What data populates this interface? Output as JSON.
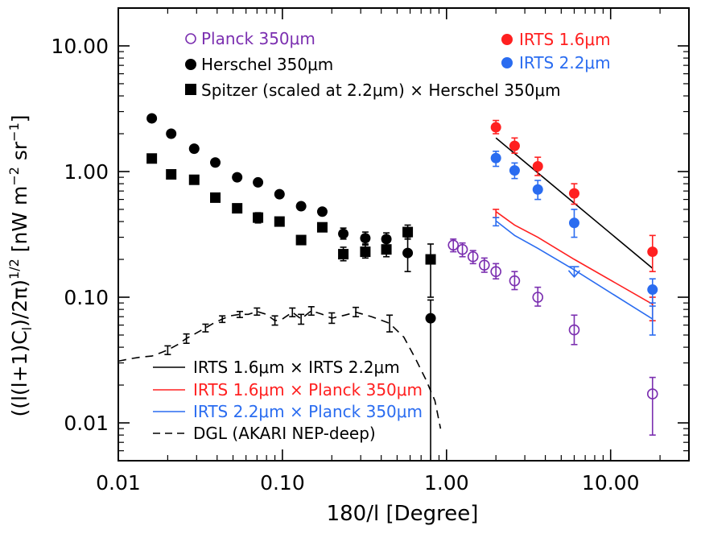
{
  "chart_data": {
    "type": "scatter",
    "xscale": "log",
    "yscale": "log",
    "xlim": [
      0.01,
      30
    ],
    "ylim": [
      0.005,
      20
    ],
    "xlabel": "180/l [Degree]",
    "ylabel": "((l(l+1)C_l)/2π)^1/2 [nW m^-2 sr^-1]",
    "ylabel_main": "((l(l+1)C",
    "ylabel_sub": "l",
    "ylabel_mid": ")/2π)",
    "ylabel_sup1": "1/2",
    "ylabel_unit": " [nW m",
    "ylabel_sup2": "−2",
    "ylabel_unit2": " sr",
    "ylabel_sup3": "−1",
    "ylabel_end": "]",
    "xticks": [
      {
        "value": 0.01,
        "label": "0.01"
      },
      {
        "value": 0.1,
        "label": "0.10"
      },
      {
        "value": 1,
        "label": "1.00"
      },
      {
        "value": 10,
        "label": "10.00"
      }
    ],
    "yticks": [
      {
        "value": 0.01,
        "label": "0.01"
      },
      {
        "value": 0.1,
        "label": "0.10"
      },
      {
        "value": 1,
        "label": "1.00"
      },
      {
        "value": 10,
        "label": "10.00"
      }
    ],
    "colors": {
      "black": "#000000",
      "red": "#ff2020",
      "blue": "#2a6cf0",
      "purple": "#7b2fb0"
    },
    "series": [
      {
        "name": "Planck 350μm",
        "label": "Planck 350",
        "unit": "μm",
        "marker": "open-circle",
        "color": "#7b2fb0",
        "points": [
          {
            "x": 1.1,
            "y": 0.26,
            "lo": 0.23,
            "hi": 0.29
          },
          {
            "x": 1.25,
            "y": 0.24,
            "lo": 0.21,
            "hi": 0.27
          },
          {
            "x": 1.45,
            "y": 0.21,
            "lo": 0.185,
            "hi": 0.235
          },
          {
            "x": 1.7,
            "y": 0.18,
            "lo": 0.158,
            "hi": 0.205
          },
          {
            "x": 2.0,
            "y": 0.16,
            "lo": 0.14,
            "hi": 0.185
          },
          {
            "x": 2.6,
            "y": 0.135,
            "lo": 0.115,
            "hi": 0.16
          },
          {
            "x": 3.6,
            "y": 0.1,
            "lo": 0.085,
            "hi": 0.12
          },
          {
            "x": 6.0,
            "y": 0.055,
            "lo": 0.042,
            "hi": 0.072
          },
          {
            "x": 18.0,
            "y": 0.017,
            "lo": 0.008,
            "hi": 0.023
          }
        ]
      },
      {
        "name": "Herschel 350μm",
        "label": "Herschel 350",
        "unit": "μm",
        "marker": "filled-circle",
        "color": "#000000",
        "points": [
          {
            "x": 0.016,
            "y": 2.65
          },
          {
            "x": 0.021,
            "y": 2.0
          },
          {
            "x": 0.029,
            "y": 1.52
          },
          {
            "x": 0.039,
            "y": 1.18
          },
          {
            "x": 0.053,
            "y": 0.9
          },
          {
            "x": 0.071,
            "y": 0.82
          },
          {
            "x": 0.096,
            "y": 0.66
          },
          {
            "x": 0.13,
            "y": 0.53
          },
          {
            "x": 0.175,
            "y": 0.48
          },
          {
            "x": 0.235,
            "y": 0.32,
            "lo": 0.29,
            "hi": 0.355
          },
          {
            "x": 0.32,
            "y": 0.295,
            "lo": 0.265,
            "hi": 0.33
          },
          {
            "x": 0.43,
            "y": 0.29,
            "lo": 0.26,
            "hi": 0.325
          },
          {
            "x": 0.58,
            "y": 0.225,
            "lo": 0.16,
            "hi": 0.3
          },
          {
            "x": 0.8,
            "y": 0.068,
            "lo": 0.003,
            "hi": 0.095
          }
        ]
      },
      {
        "name": "Spitzer (scaled at 2.2μm) × Herschel 350μm",
        "label": "Spitzer (scaled at 2.2",
        "unit": "μm",
        "label_tail": ") × Herschel 350",
        "marker": "filled-square",
        "color": "#000000",
        "points": [
          {
            "x": 0.016,
            "y": 1.27
          },
          {
            "x": 0.021,
            "y": 0.95
          },
          {
            "x": 0.029,
            "y": 0.86
          },
          {
            "x": 0.039,
            "y": 0.62
          },
          {
            "x": 0.053,
            "y": 0.51
          },
          {
            "x": 0.071,
            "y": 0.43,
            "lo": 0.39,
            "hi": 0.47
          },
          {
            "x": 0.096,
            "y": 0.4
          },
          {
            "x": 0.13,
            "y": 0.285
          },
          {
            "x": 0.175,
            "y": 0.36
          },
          {
            "x": 0.235,
            "y": 0.22,
            "lo": 0.195,
            "hi": 0.25
          },
          {
            "x": 0.32,
            "y": 0.23,
            "lo": 0.205,
            "hi": 0.26
          },
          {
            "x": 0.43,
            "y": 0.24,
            "lo": 0.21,
            "hi": 0.275
          },
          {
            "x": 0.58,
            "y": 0.33,
            "lo": 0.29,
            "hi": 0.375
          },
          {
            "x": 0.8,
            "y": 0.2,
            "lo": 0.1,
            "hi": 0.265
          }
        ]
      },
      {
        "name": "IRTS 1.6μm",
        "label": "IRTS 1.6",
        "unit": "μm",
        "marker": "filled-circle",
        "color": "#ff2020",
        "points": [
          {
            "x": 2.0,
            "y": 2.25,
            "lo": 2.0,
            "hi": 2.55
          },
          {
            "x": 2.6,
            "y": 1.6,
            "lo": 1.4,
            "hi": 1.85
          },
          {
            "x": 3.6,
            "y": 1.1,
            "lo": 0.93,
            "hi": 1.3
          },
          {
            "x": 6.0,
            "y": 0.67,
            "lo": 0.55,
            "hi": 0.8
          },
          {
            "x": 18.0,
            "y": 0.23,
            "lo": 0.16,
            "hi": 0.31
          }
        ]
      },
      {
        "name": "IRTS 2.2μm",
        "label": "IRTS 2.2",
        "unit": "μm",
        "marker": "filled-circle",
        "color": "#2a6cf0",
        "points": [
          {
            "x": 2.0,
            "y": 1.28,
            "lo": 1.1,
            "hi": 1.45
          },
          {
            "x": 2.6,
            "y": 1.02,
            "lo": 0.88,
            "hi": 1.17
          },
          {
            "x": 3.6,
            "y": 0.72,
            "lo": 0.6,
            "hi": 0.85
          },
          {
            "x": 6.0,
            "y": 0.39,
            "lo": 0.3,
            "hi": 0.5
          },
          {
            "x": 18.0,
            "y": 0.115,
            "lo": 0.09,
            "hi": 0.14
          }
        ],
        "upper_limit": {
          "x": 6.0,
          "y": 0.175,
          "lo": 0.145
        }
      }
    ],
    "lines": [
      {
        "name": "IRTS 1.6μm × IRTS 2.2μm",
        "label": "IRTS 1.6",
        "unit": "μm",
        "label_mid": " × IRTS 2.2",
        "unit2": "μm",
        "label_end": "",
        "color": "#000000",
        "style": "solid",
        "points": [
          {
            "x": 2.0,
            "y": 1.85
          },
          {
            "x": 18.0,
            "y": 0.17
          }
        ]
      },
      {
        "name": "IRTS 1.6μm × Planck 350μm",
        "label": "IRTS 1.6",
        "unit": "μm",
        "label_mid": " × Planck 350",
        "unit2": "μm",
        "label_end": "",
        "color": "#ff2020",
        "style": "solid",
        "points": [
          {
            "x": 2.0,
            "y": 0.48,
            "lo": 0.43,
            "hi": 0.5
          },
          {
            "x": 2.6,
            "y": 0.375
          },
          {
            "x": 3.6,
            "y": 0.3
          },
          {
            "x": 6.0,
            "y": 0.2
          },
          {
            "x": 18.0,
            "y": 0.088,
            "lo": 0.065,
            "hi": 0.1
          }
        ]
      },
      {
        "name": "IRTS 2.2μm × Planck 350μm",
        "label": "IRTS 2.2",
        "unit": "μm",
        "label_mid": " × Planck 350",
        "unit2": "μm",
        "label_end": "",
        "color": "#2a6cf0",
        "style": "solid",
        "points": [
          {
            "x": 2.0,
            "y": 0.405,
            "lo": 0.37,
            "hi": 0.43
          },
          {
            "x": 2.6,
            "y": 0.31
          },
          {
            "x": 3.6,
            "y": 0.245
          },
          {
            "x": 6.0,
            "y": 0.165
          },
          {
            "x": 18.0,
            "y": 0.067,
            "lo": 0.05,
            "hi": 0.085
          }
        ]
      },
      {
        "name": "DGL (AKARI NEP-deep)",
        "label": "DGL (AKARI NEP-deep)",
        "unit": "",
        "label_mid": "",
        "unit2": "",
        "label_end": "",
        "color": "#000000",
        "style": "dashed",
        "points": [
          {
            "x": 0.01,
            "y": 0.031
          },
          {
            "x": 0.012,
            "y": 0.0325
          },
          {
            "x": 0.014,
            "y": 0.0335
          },
          {
            "x": 0.016,
            "y": 0.034
          },
          {
            "x": 0.018,
            "y": 0.036
          },
          {
            "x": 0.02,
            "y": 0.038
          },
          {
            "x": 0.023,
            "y": 0.042
          },
          {
            "x": 0.026,
            "y": 0.047
          },
          {
            "x": 0.03,
            "y": 0.052
          },
          {
            "x": 0.034,
            "y": 0.057
          },
          {
            "x": 0.038,
            "y": 0.062
          },
          {
            "x": 0.043,
            "y": 0.067
          },
          {
            "x": 0.048,
            "y": 0.071
          },
          {
            "x": 0.055,
            "y": 0.073
          },
          {
            "x": 0.062,
            "y": 0.073
          },
          {
            "x": 0.07,
            "y": 0.077
          },
          {
            "x": 0.08,
            "y": 0.073
          },
          {
            "x": 0.09,
            "y": 0.065
          },
          {
            "x": 0.1,
            "y": 0.067
          },
          {
            "x": 0.115,
            "y": 0.076
          },
          {
            "x": 0.13,
            "y": 0.067
          },
          {
            "x": 0.15,
            "y": 0.078
          },
          {
            "x": 0.175,
            "y": 0.073
          },
          {
            "x": 0.2,
            "y": 0.068
          },
          {
            "x": 0.24,
            "y": 0.072
          },
          {
            "x": 0.28,
            "y": 0.076
          },
          {
            "x": 0.35,
            "y": 0.07
          },
          {
            "x": 0.45,
            "y": 0.062
          },
          {
            "x": 0.55,
            "y": 0.048
          },
          {
            "x": 0.65,
            "y": 0.032
          },
          {
            "x": 0.75,
            "y": 0.022
          },
          {
            "x": 0.85,
            "y": 0.015
          },
          {
            "x": 0.92,
            "y": 0.009
          }
        ],
        "errorbars": [
          {
            "x": 0.02,
            "y": 0.038,
            "lo": 0.035,
            "hi": 0.041
          },
          {
            "x": 0.026,
            "y": 0.047,
            "lo": 0.043,
            "hi": 0.051
          },
          {
            "x": 0.034,
            "y": 0.057,
            "lo": 0.053,
            "hi": 0.061
          },
          {
            "x": 0.043,
            "y": 0.067,
            "lo": 0.063,
            "hi": 0.071
          },
          {
            "x": 0.055,
            "y": 0.073,
            "lo": 0.069,
            "hi": 0.077
          },
          {
            "x": 0.07,
            "y": 0.077,
            "lo": 0.072,
            "hi": 0.082
          },
          {
            "x": 0.09,
            "y": 0.065,
            "lo": 0.06,
            "hi": 0.071
          },
          {
            "x": 0.115,
            "y": 0.076,
            "lo": 0.07,
            "hi": 0.082
          },
          {
            "x": 0.13,
            "y": 0.067,
            "lo": 0.061,
            "hi": 0.073
          },
          {
            "x": 0.15,
            "y": 0.078,
            "lo": 0.072,
            "hi": 0.084
          },
          {
            "x": 0.2,
            "y": 0.068,
            "lo": 0.062,
            "hi": 0.075
          },
          {
            "x": 0.28,
            "y": 0.076,
            "lo": 0.07,
            "hi": 0.083
          },
          {
            "x": 0.45,
            "y": 0.062,
            "lo": 0.053,
            "hi": 0.072
          }
        ]
      }
    ],
    "legend_top": {
      "placement": "top"
    },
    "legend_bottom": {
      "placement": "bottom-left"
    }
  }
}
